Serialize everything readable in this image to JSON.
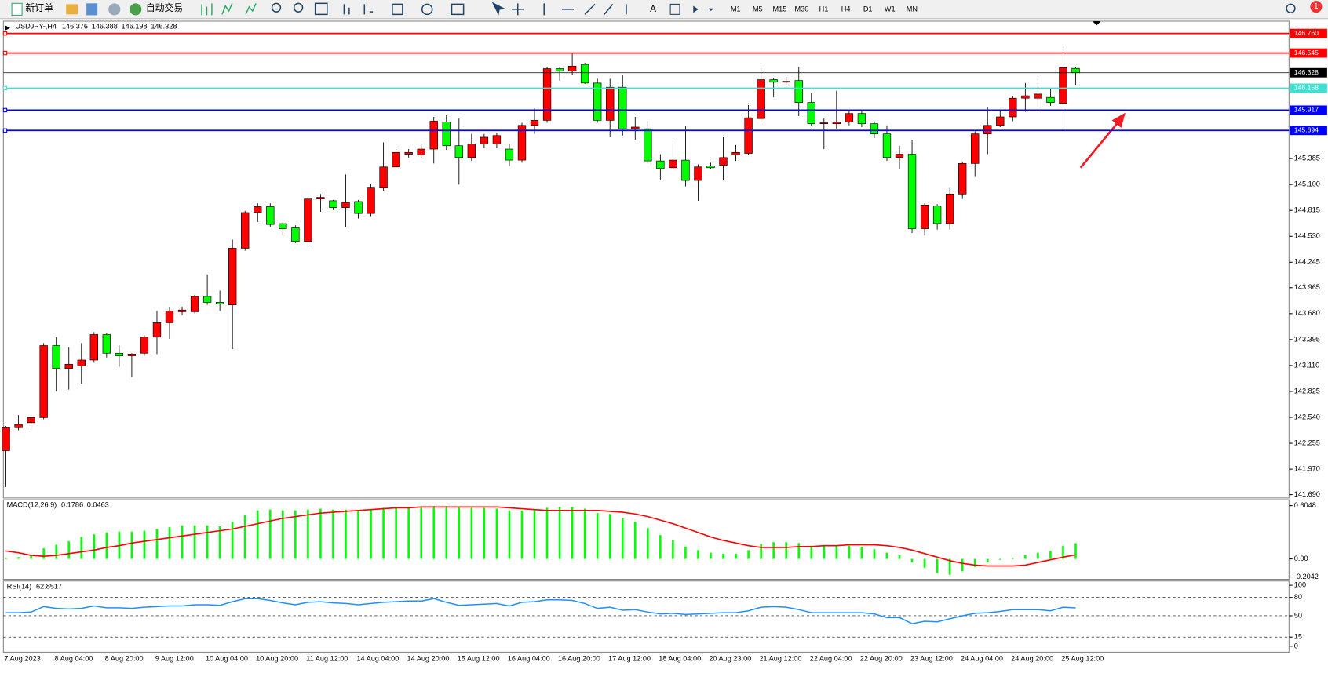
{
  "toolbar": {
    "new_order": "新订单",
    "auto_trading": "自动交易",
    "text_tool": "A",
    "timeframes": [
      "M1",
      "M5",
      "M15",
      "M30",
      "H1",
      "H4",
      "D1",
      "W1",
      "MN"
    ],
    "alerts": "1"
  },
  "chart_data": [
    {
      "type": "candlestick",
      "symbol": "USDJPY-,H4",
      "categories": [
        "7 Aug 2023",
        null,
        null,
        null,
        "8 Aug 04:00",
        null,
        null,
        null,
        "8 Aug 20:00",
        null,
        null,
        null,
        "9 Aug 12:00",
        null,
        null,
        null,
        "10 Aug 04:00",
        null,
        null,
        null,
        "10 Aug 20:00",
        null,
        null,
        null,
        "11 Aug 12:00",
        null,
        null,
        null,
        "14 Aug 04:00",
        null,
        null,
        null,
        "14 Aug 20:00",
        null,
        null,
        null,
        "15 Aug 12:00",
        null,
        null,
        null,
        "16 Aug 04:00",
        null,
        null,
        null,
        "16 Aug 20:00",
        null,
        null,
        null,
        "17 Aug 12:00",
        null,
        null,
        null,
        "18 Aug 04:00",
        null,
        null,
        null,
        "20 Aug 23:00",
        null,
        null,
        null,
        "21 Aug 12:00",
        null,
        null,
        null,
        "22 Aug 04:00",
        null,
        null,
        null,
        "22 Aug 20:00",
        null,
        null,
        null,
        "23 Aug 12:00",
        null,
        null,
        null,
        "24 Aug 04:00",
        null,
        null,
        null,
        "24 Aug 20:00",
        null,
        null,
        null,
        "25 Aug 12:00",
        null
      ],
      "open": [
        142.174,
        142.426,
        142.481,
        142.537,
        143.329,
        143.077,
        143.105,
        143.17,
        143.45,
        143.245,
        143.217,
        143.245,
        143.422,
        143.58,
        143.701,
        143.701,
        143.869,
        143.804,
        143.776,
        144.399,
        144.791,
        144.856,
        144.67,
        144.623,
        144.474,
        144.94,
        144.921,
        144.846,
        144.912,
        144.781,
        145.061,
        145.293,
        145.433,
        145.424,
        145.489,
        145.787,
        145.526,
        145.396,
        145.545,
        145.545,
        145.489,
        145.368,
        145.75,
        145.805,
        146.373,
        146.345,
        146.42,
        146.215,
        145.805,
        146.169,
        145.712,
        145.712,
        145.359,
        145.284,
        145.368,
        145.144,
        145.303,
        145.312,
        145.424,
        145.442,
        145.824,
        146.252,
        146.224,
        146.243,
        146.001,
        145.768,
        145.768,
        145.787,
        145.88,
        145.768,
        145.656,
        145.396,
        145.433,
        144.614,
        144.865,
        144.67,
        144.995,
        145.331,
        145.656,
        145.75,
        145.843,
        146.048,
        146.048,
        146.057,
        145.992,
        146.376
      ],
      "high": [
        142.444,
        142.565,
        142.565,
        143.357,
        143.422,
        143.31,
        143.357,
        143.478,
        143.468,
        143.329,
        143.245,
        143.44,
        143.71,
        143.748,
        143.757,
        143.887,
        144.111,
        143.934,
        144.493,
        144.809,
        144.893,
        144.893,
        144.688,
        144.651,
        144.958,
        144.995,
        144.93,
        145.21,
        144.93,
        145.107,
        145.563,
        145.489,
        145.489,
        145.545,
        145.843,
        145.861,
        145.824,
        145.656,
        145.656,
        145.666,
        145.545,
        145.778,
        145.936,
        146.392,
        146.392,
        146.541,
        146.439,
        146.262,
        146.262,
        146.299,
        145.843,
        145.796,
        145.433,
        145.554,
        145.74,
        145.321,
        145.34,
        145.619,
        145.535,
        145.973,
        146.383,
        146.271,
        146.28,
        146.392,
        146.103,
        145.824,
        146.131,
        145.908,
        145.917,
        145.796,
        145.75,
        145.526,
        145.591,
        144.893,
        144.884,
        145.061,
        145.349,
        145.684,
        145.945,
        145.917,
        146.075,
        146.215,
        146.262,
        146.159,
        146.634,
        146.388
      ],
      "low": [
        141.774,
        142.398,
        142.398,
        142.519,
        142.826,
        142.845,
        142.91,
        143.142,
        143.198,
        143.096,
        142.984,
        143.217,
        143.236,
        143.403,
        143.664,
        143.683,
        143.776,
        143.71,
        143.291,
        144.372,
        144.688,
        144.632,
        144.539,
        144.455,
        144.409,
        144.8,
        144.818,
        144.632,
        144.725,
        144.744,
        145.033,
        145.275,
        145.396,
        145.396,
        145.331,
        145.48,
        145.098,
        145.359,
        145.498,
        145.498,
        145.303,
        145.34,
        145.656,
        145.778,
        146.243,
        146.308,
        146.206,
        145.778,
        145.619,
        145.638,
        145.591,
        145.331,
        145.144,
        145.265,
        145.079,
        144.921,
        145.265,
        145.144,
        145.359,
        145.424,
        145.805,
        146.057,
        146.197,
        145.852,
        145.74,
        145.489,
        145.712,
        145.75,
        145.731,
        145.61,
        145.359,
        145.265,
        144.567,
        144.539,
        144.604,
        144.604,
        144.94,
        145.182,
        145.433,
        145.731,
        145.796,
        145.899,
        145.908,
        145.964,
        145.684,
        146.198
      ],
      "close": [
        142.426,
        142.463,
        142.537,
        143.329,
        143.077,
        143.124,
        143.17,
        143.45,
        143.245,
        143.217,
        143.236,
        143.422,
        143.58,
        143.71,
        143.72,
        143.869,
        143.804,
        143.785,
        144.399,
        144.791,
        144.856,
        144.66,
        144.614,
        144.474,
        144.94,
        144.958,
        144.846,
        144.902,
        144.781,
        145.061,
        145.293,
        145.452,
        145.452,
        145.489,
        145.796,
        145.526,
        145.396,
        145.545,
        145.619,
        145.638,
        145.368,
        145.75,
        145.805,
        146.373,
        146.345,
        146.401,
        146.215,
        145.805,
        146.169,
        145.712,
        145.731,
        145.359,
        145.275,
        145.368,
        145.144,
        145.293,
        145.284,
        145.396,
        145.452,
        145.833,
        146.252,
        146.224,
        146.234,
        146.001,
        145.768,
        145.778,
        145.787,
        145.88,
        145.768,
        145.656,
        145.396,
        145.433,
        144.614,
        144.874,
        144.67,
        144.995,
        145.331,
        145.656,
        145.75,
        145.843,
        146.048,
        146.075,
        146.094,
        146.001,
        146.383,
        146.328
      ],
      "up_color": "#ff0000",
      "down_color": "#00ff00",
      "ylim": [
        141.653,
        146.895
      ],
      "yticks": [
        {
          "value": 141.69,
          "label": "141.690"
        },
        {
          "value": 141.97,
          "label": "141.970"
        },
        142.255,
        {
          "value": 142.54,
          "label": "142.540"
        },
        142.825,
        {
          "value": 143.11,
          "label": "143.110"
        },
        143.395,
        {
          "value": 143.68,
          "label": "143.680"
        },
        143.965,
        144.245,
        {
          "value": 144.53,
          "label": "144.530"
        },
        144.815,
        {
          "value": 145.1,
          "label": "145.100"
        },
        145.385
      ],
      "levels": [
        {
          "value": 146.76,
          "label": "146.760",
          "color": "#ff0000"
        },
        {
          "value": 146.545,
          "color": "#ff0000"
        },
        {
          "value": 146.158,
          "color": "#40e0d0"
        },
        {
          "value": 145.917,
          "color": "#0000ff"
        },
        {
          "value": 145.694,
          "color": "#0000ff"
        }
      ]
    },
    {
      "type": "macd",
      "title": "MACD(12,26,9)",
      "series": [
        {
          "color": "#00ff00",
          "values": [
            0.01,
            0.02,
            0.05,
            0.12,
            0.16,
            0.2,
            0.25,
            0.28,
            0.3,
            0.31,
            0.31,
            0.32,
            0.34,
            0.36,
            0.38,
            0.38,
            0.38,
            0.37,
            0.42,
            0.5,
            0.55,
            0.56,
            0.55,
            0.55,
            0.56,
            0.57,
            0.56,
            0.56,
            0.55,
            0.56,
            0.58,
            0.59,
            0.59,
            0.59,
            0.6,
            0.6,
            0.59,
            0.58,
            0.58,
            0.57,
            0.55,
            0.55,
            0.55,
            0.58,
            0.59,
            0.59,
            0.57,
            0.52,
            0.51,
            0.46,
            0.42,
            0.35,
            0.27,
            0.21,
            0.14,
            0.1,
            0.07,
            0.06,
            0.06,
            0.1,
            0.17,
            0.19,
            0.19,
            0.18,
            0.15,
            0.15,
            0.15,
            0.15,
            0.14,
            0.11,
            0.07,
            0.04,
            -0.04,
            -0.1,
            -0.16,
            -0.18,
            -0.14,
            -0.09,
            -0.04,
            -0.01,
            0.01,
            0.04,
            0.07,
            0.09,
            0.15,
            0.1786
          ]
        },
        {
          "color": "#ff0000",
          "values": [
            0.09,
            0.07,
            0.04,
            0.03,
            0.04,
            0.06,
            0.08,
            0.1,
            0.13,
            0.15,
            0.18,
            0.2,
            0.22,
            0.24,
            0.26,
            0.28,
            0.3,
            0.32,
            0.34,
            0.37,
            0.4,
            0.43,
            0.46,
            0.48,
            0.5,
            0.52,
            0.53,
            0.54,
            0.55,
            0.56,
            0.57,
            0.58,
            0.58,
            0.59,
            0.59,
            0.59,
            0.59,
            0.59,
            0.59,
            0.59,
            0.58,
            0.57,
            0.56,
            0.55,
            0.55,
            0.55,
            0.55,
            0.55,
            0.54,
            0.53,
            0.51,
            0.48,
            0.44,
            0.4,
            0.35,
            0.3,
            0.25,
            0.21,
            0.18,
            0.15,
            0.13,
            0.13,
            0.13,
            0.14,
            0.14,
            0.15,
            0.15,
            0.16,
            0.16,
            0.16,
            0.15,
            0.13,
            0.1,
            0.06,
            0.02,
            -0.02,
            -0.05,
            -0.07,
            -0.08,
            -0.08,
            -0.08,
            -0.07,
            -0.04,
            -0.01,
            0.02,
            0.0463
          ]
        }
      ],
      "ylim": [
        -0.231,
        0.672
      ],
      "yticks": [
        0.6048,
        {
          "value": 0,
          "label": "0.00"
        },
        -0.2042
      ]
    },
    {
      "type": "line",
      "title": "RSI(14)",
      "color": "#1e90ff",
      "values": [
        55,
        55,
        56,
        65,
        62,
        61,
        62,
        66,
        63,
        63,
        62,
        64,
        65,
        66,
        66,
        68,
        68,
        67,
        73,
        78,
        78,
        75,
        71,
        68,
        72,
        73,
        71,
        70,
        68,
        70,
        72,
        73,
        74,
        74,
        78,
        72,
        67,
        68,
        69,
        70,
        66,
        72,
        73,
        76,
        76,
        75,
        70,
        62,
        64,
        59,
        60,
        56,
        53,
        54,
        52,
        53,
        54,
        55,
        55,
        58,
        64,
        65,
        64,
        60,
        55,
        55,
        55,
        55,
        55,
        53,
        47,
        47,
        37,
        41,
        40,
        45,
        50,
        54,
        55,
        57,
        60,
        60,
        60,
        58,
        64,
        62.8517
      ],
      "ylim": [
        0,
        100
      ],
      "yticks": [
        100,
        80,
        50,
        15,
        0
      ]
    }
  ]
}
